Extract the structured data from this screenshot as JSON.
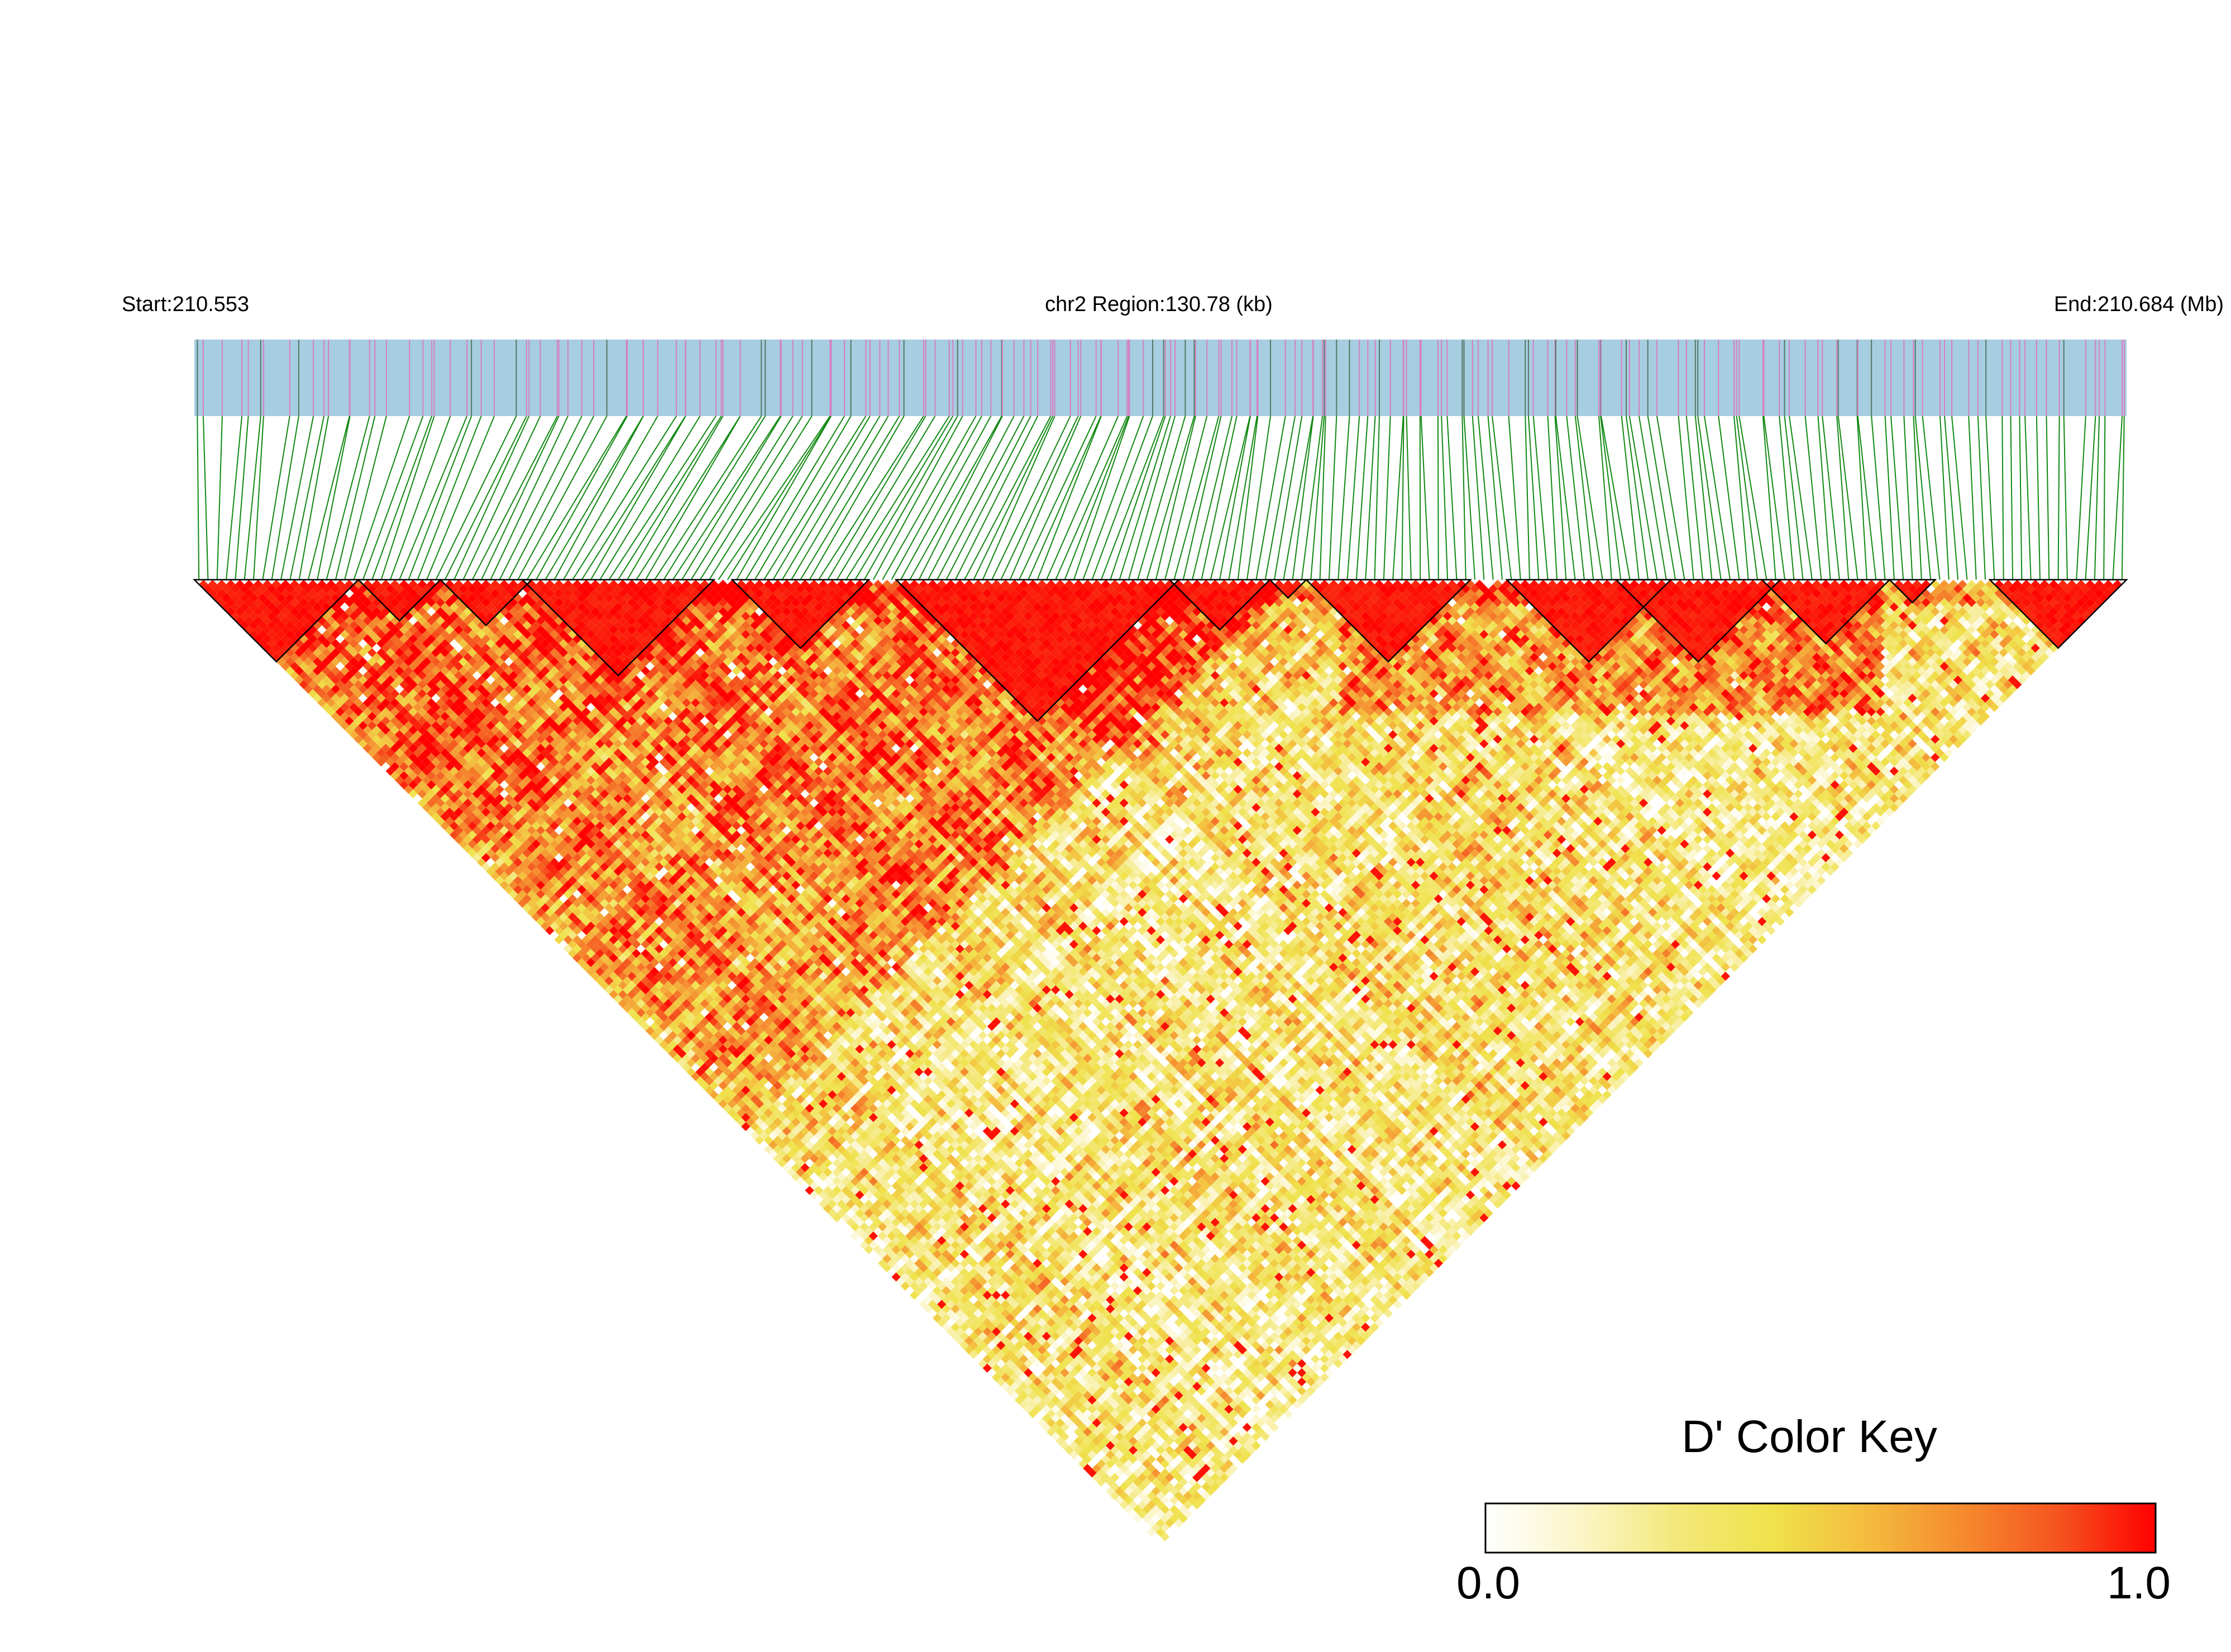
{
  "header": {
    "start_label": "Start:210.553",
    "region_label": "chr2 Region:130.78 (kb)",
    "end_label": "End:210.684 (Mb)"
  },
  "chart_data": {
    "type": "heatmap",
    "subtype": "LD heatmap (triangle)",
    "chromosome": "chr2",
    "start_mb": 210.553,
    "end_mb": 210.684,
    "region_kb": 130.78,
    "measure": "D'",
    "n_snps": 212,
    "value_range": [
      0.0,
      1.0
    ],
    "ld_blocks_snp_index_ranges": [
      [
        0,
        17
      ],
      [
        18,
        26
      ],
      [
        27,
        36
      ],
      [
        36,
        56
      ],
      [
        59,
        73
      ],
      [
        77,
        107
      ],
      [
        107,
        117
      ],
      [
        118,
        121
      ],
      [
        122,
        139
      ],
      [
        144,
        161
      ],
      [
        156,
        173
      ],
      [
        172,
        185
      ],
      [
        186,
        190
      ],
      [
        197,
        211
      ]
    ],
    "color_key": {
      "title": "D' Color Key",
      "min_label": "0.0",
      "max_label": "1.0",
      "colors": [
        "#ffffff",
        "#fbf5c7",
        "#f4e87a",
        "#efe24b",
        "#f4bb3e",
        "#f58a2e",
        "#f5531e",
        "#ff0000"
      ]
    },
    "colors": {
      "gene_track_fill": "#a6cde0",
      "snp_tick": "#d67fc4",
      "snp_tick_dark": "#557766",
      "connector_line": "#118811",
      "block_outline": "#000000"
    }
  }
}
